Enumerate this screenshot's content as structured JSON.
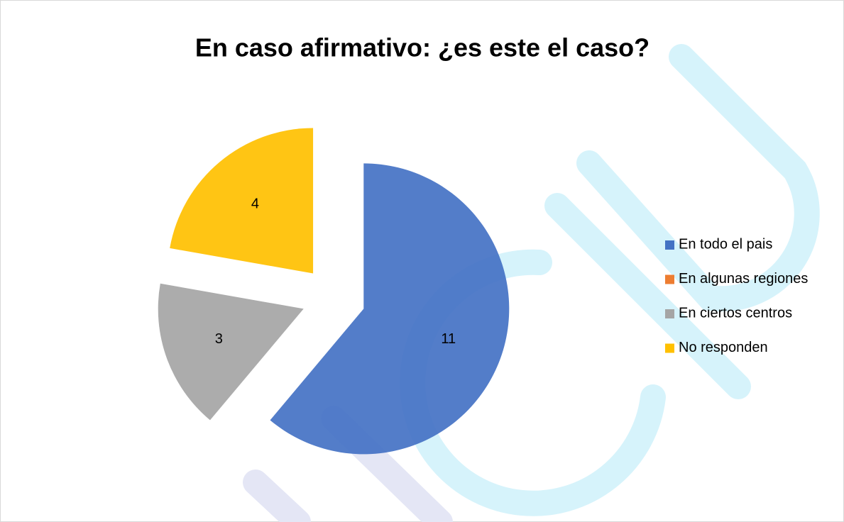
{
  "chart_data": {
    "type": "pie",
    "title": "En caso afirmativo: ¿es este el caso?",
    "categories": [
      "En todo el pais",
      "En algunas regiones",
      "En ciertos centros",
      "No responden"
    ],
    "values": [
      11,
      0,
      3,
      4
    ],
    "colors": [
      "#4472c4",
      "#ed7d31",
      "#a5a5a5",
      "#ffc000"
    ],
    "legend": "right"
  }
}
